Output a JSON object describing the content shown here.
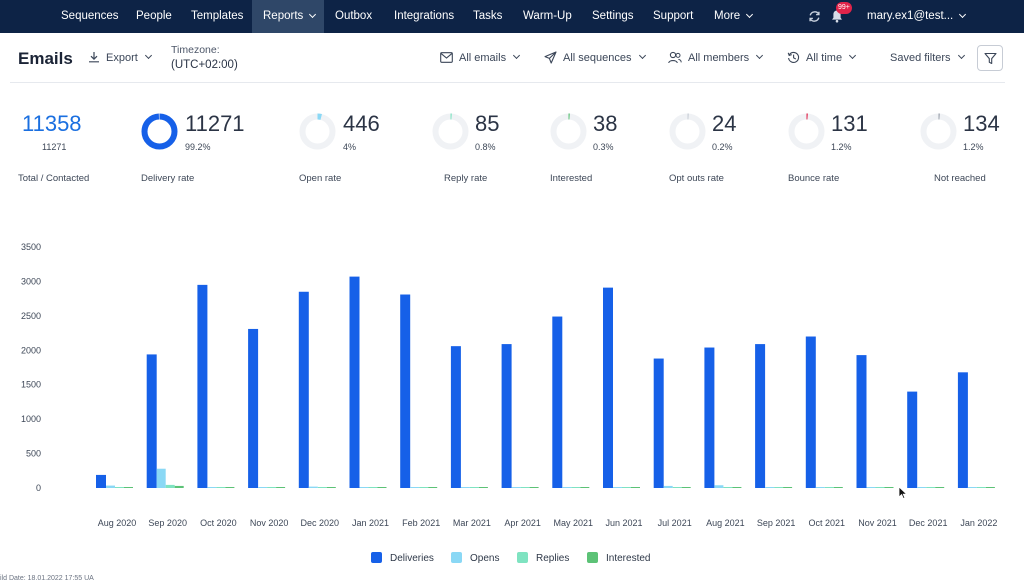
{
  "nav": {
    "items": [
      "Sequences",
      "People",
      "Templates",
      "Reports",
      "Outbox",
      "Integrations",
      "Tasks",
      "Warm-Up",
      "Settings",
      "Support",
      "More"
    ],
    "active": "Reports",
    "notifications_badge": "99+",
    "user": "mary.ex1@test...",
    "icons": [
      "refresh-icon",
      "bell-icon",
      "chevron-down-icon"
    ]
  },
  "toolbar": {
    "title": "Emails",
    "export_label": "Export",
    "timezone_label": "Timezone:",
    "timezone_value": "(UTC+02:00)",
    "all_emails": "All emails",
    "all_sequences": "All sequences",
    "all_members": "All members",
    "all_time": "All time",
    "saved_filters": "Saved filters"
  },
  "stats": [
    {
      "value": "11358",
      "sub": "11271",
      "label": "Total / Contacted",
      "ring": null
    },
    {
      "value": "11271",
      "sub": "99.2%",
      "label": "Delivery rate",
      "ring": 0.992,
      "ring_color": "#1660e8"
    },
    {
      "value": "446",
      "sub": "4%",
      "label": "Open rate",
      "ring": 0.04,
      "ring_color": "#8ad8f5"
    },
    {
      "value": "85",
      "sub": "0.8%",
      "label": "Reply rate",
      "ring": 0.008,
      "ring_color": "#7fe3c1"
    },
    {
      "value": "38",
      "sub": "0.3%",
      "label": "Interested",
      "ring": 0.003,
      "ring_color": "#5cc276"
    },
    {
      "value": "24",
      "sub": "0.2%",
      "label": "Opt outs rate",
      "ring": 0.002,
      "ring_color": "#c9ced6"
    },
    {
      "value": "131",
      "sub": "1.2%",
      "label": "Bounce rate",
      "ring": 0.012,
      "ring_color": "#e0244a"
    },
    {
      "value": "134",
      "sub": "1.2%",
      "label": "Not reached",
      "ring": 0.012,
      "ring_color": "#9aa1ac"
    }
  ],
  "chart_data": {
    "type": "bar",
    "categories": [
      "Aug 2020",
      "Sep 2020",
      "Oct 2020",
      "Nov 2020",
      "Dec 2020",
      "Jan 2021",
      "Feb 2021",
      "Mar 2021",
      "Apr 2021",
      "May 2021",
      "Jun 2021",
      "Jul 2021",
      "Aug 2021",
      "Sep 2021",
      "Oct 2021",
      "Nov 2021",
      "Dec 2021",
      "Jan 2022"
    ],
    "yticks": [
      0,
      500,
      1000,
      1500,
      2000,
      2500,
      3000,
      3500
    ],
    "ylim": [
      0,
      3500
    ],
    "series": [
      {
        "name": "Deliveries",
        "color": "#1660e8",
        "values": [
          190,
          1940,
          2950,
          2310,
          2850,
          3070,
          2810,
          2060,
          2090,
          2490,
          2910,
          1880,
          2040,
          2090,
          2200,
          1930,
          1400,
          1680
        ]
      },
      {
        "name": "Opens",
        "color": "#8ad8f5",
        "values": [
          35,
          280,
          0,
          0,
          20,
          5,
          0,
          0,
          10,
          0,
          10,
          30,
          40,
          5,
          0,
          0,
          0,
          0
        ]
      },
      {
        "name": "Replies",
        "color": "#7fe3c1",
        "values": [
          0,
          45,
          0,
          0,
          0,
          5,
          5,
          0,
          0,
          5,
          5,
          0,
          0,
          0,
          0,
          0,
          0,
          0
        ]
      },
      {
        "name": "Interested",
        "color": "#5cc276",
        "values": [
          5,
          30,
          0,
          0,
          0,
          5,
          0,
          0,
          0,
          0,
          0,
          0,
          0,
          0,
          0,
          0,
          0,
          0
        ]
      }
    ]
  },
  "footer_note": "ild Date: 18.01.2022 17:55 UA"
}
